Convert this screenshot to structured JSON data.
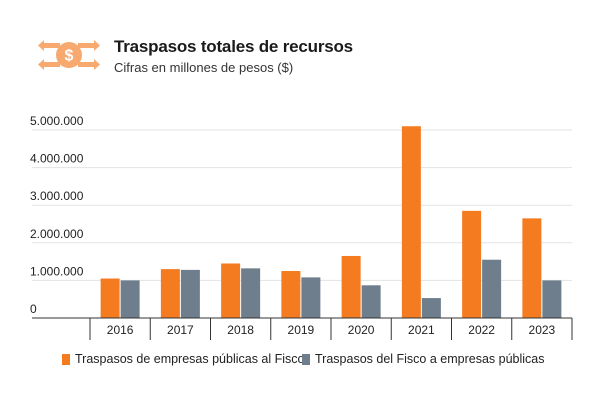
{
  "header": {
    "title": "Traspasos totales de recursos",
    "subtitle": "Cifras en millones de pesos ($)",
    "logo_icon": "dollar-exchange-icon"
  },
  "colors": {
    "orange": "#F47B20",
    "slate": "#6E7E8C",
    "logo": "#F7A970",
    "grid": "#E3E3E3",
    "axis": "#333333"
  },
  "chart_data": {
    "type": "bar",
    "title": "Traspasos totales de recursos",
    "subtitle": "Cifras en millones de pesos ($)",
    "xlabel": "",
    "ylabel": "",
    "ylim": [
      0,
      5000000
    ],
    "yticks": [
      0,
      1000000,
      2000000,
      3000000,
      4000000,
      5000000
    ],
    "ytick_labels": [
      "0",
      "1.000.000",
      "2.000.000",
      "3.000.000",
      "4.000.000",
      "5.000.000"
    ],
    "categories": [
      "2016",
      "2017",
      "2018",
      "2019",
      "2020",
      "2021",
      "2022",
      "2023"
    ],
    "series": [
      {
        "name": "Traspasos de empresas públicas al Fisco",
        "color": "#F47B20",
        "values": [
          1050000,
          1300000,
          1450000,
          1250000,
          1650000,
          5100000,
          2850000,
          2650000
        ]
      },
      {
        "name": "Traspasos del Fisco a empresas públicas",
        "color": "#6E7E8C",
        "values": [
          1000000,
          1280000,
          1320000,
          1080000,
          870000,
          530000,
          1550000,
          1000000
        ]
      }
    ],
    "legend_position": "bottom"
  }
}
